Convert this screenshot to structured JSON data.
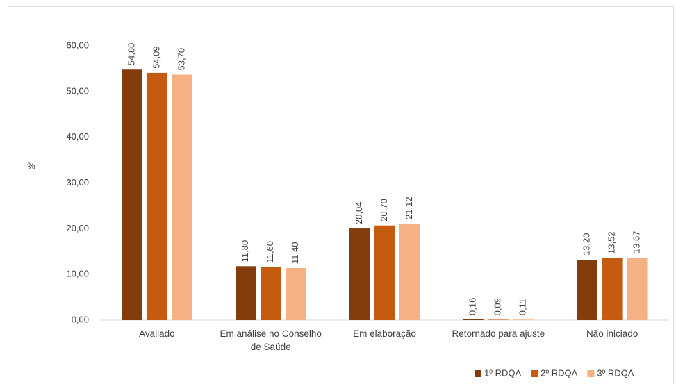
{
  "chart_data": {
    "type": "bar",
    "y_label": "%",
    "categories": [
      "Avaliado",
      "Em análise no Conselho de Saúde",
      "Em elaboração",
      "Retornado para ajuste",
      "Não iniciado"
    ],
    "series": [
      {
        "name": "1º RDQA",
        "color": "#843c0c",
        "values": [
          54.8,
          11.8,
          20.04,
          0.16,
          13.2
        ],
        "value_labels": [
          "54,80",
          "11,80",
          "20,04",
          "0,16",
          "13,20"
        ]
      },
      {
        "name": "2º RDQA",
        "color": "#c55a11",
        "values": [
          54.09,
          11.6,
          20.7,
          0.09,
          13.52
        ],
        "value_labels": [
          "54,09",
          "11,60",
          "20,70",
          "0,09",
          "13,52"
        ]
      },
      {
        "name": "3º RDQA",
        "color": "#f4b183",
        "values": [
          53.7,
          11.4,
          21.12,
          0.11,
          13.67
        ],
        "value_labels": [
          "53,70",
          "11,40",
          "21,12",
          "0,11",
          "13,67"
        ]
      }
    ],
    "ylim": [
      0,
      60
    ],
    "yticks": [
      {
        "value": 0,
        "label": "0,00"
      },
      {
        "value": 10,
        "label": "10,00"
      },
      {
        "value": 20,
        "label": "20,00"
      },
      {
        "value": 30,
        "label": "30,00"
      },
      {
        "value": 40,
        "label": "40,00"
      },
      {
        "value": 50,
        "label": "50,00"
      },
      {
        "value": 60,
        "label": "60,00"
      }
    ],
    "grid": false,
    "legend": "bottom-right"
  }
}
